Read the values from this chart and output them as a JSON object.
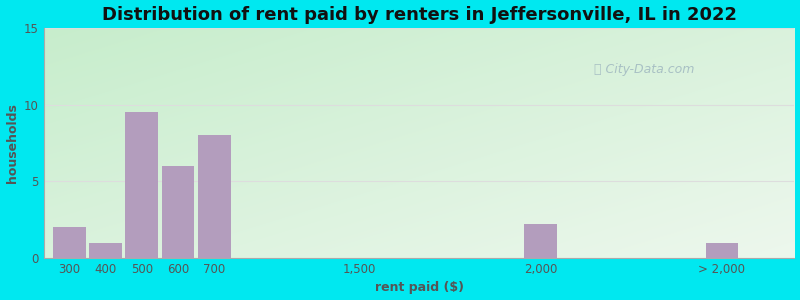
{
  "title": "Distribution of rent paid by renters in Jeffersonville, IL in 2022",
  "xlabel": "rent paid ($)",
  "ylabel": "households",
  "bar_labels": [
    "300",
    "400",
    "500",
    "600",
    "700",
    "1,500",
    "2,000",
    "> 2,000"
  ],
  "bar_values": [
    2,
    1,
    9.5,
    6,
    8,
    0,
    2.2,
    1
  ],
  "bar_positions": [
    1,
    2,
    3,
    4,
    5,
    9,
    14,
    19
  ],
  "bar_width": 0.9,
  "bar_color": "#b39dbd",
  "background_outer": "#00e8f0",
  "ylim": [
    0,
    15
  ],
  "yticks": [
    0,
    5,
    10,
    15
  ],
  "xlim": [
    0.3,
    21
  ],
  "title_fontsize": 13,
  "axis_label_fontsize": 9,
  "tick_fontsize": 8.5,
  "watermark_text": "City-Data.com",
  "watermark_color": "#a0b8c0",
  "grid_color": "#dddddd"
}
